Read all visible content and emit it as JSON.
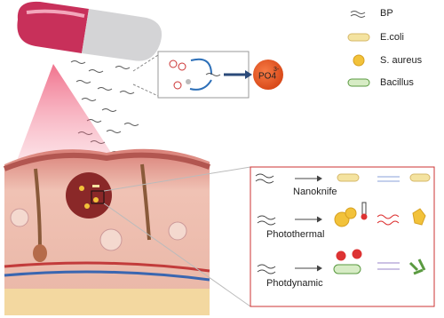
{
  "legend": [
    {
      "label": "BP"
    },
    {
      "label": "E.coli"
    },
    {
      "label": "S. aureus"
    },
    {
      "label": "Bacillus"
    }
  ],
  "product": {
    "formula": "PO4",
    "charge": "3-"
  },
  "mechanisms": [
    {
      "label": "Nanoknife"
    },
    {
      "label": "Photothermal"
    },
    {
      "label": "Photdynamic"
    }
  ]
}
